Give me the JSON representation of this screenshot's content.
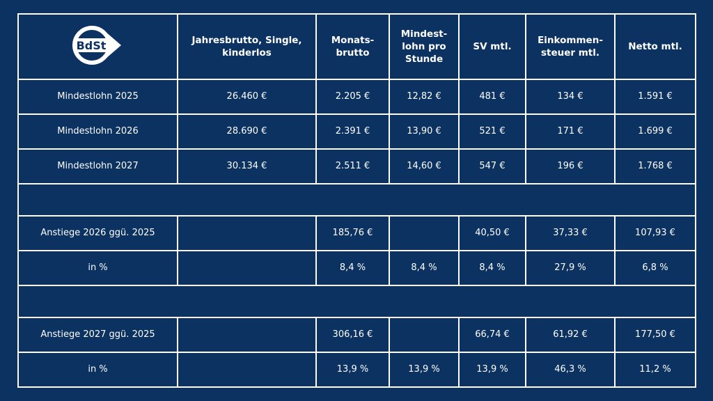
{
  "logo": {
    "text": "BdSt"
  },
  "header": {
    "col1": "Jahresbrutto, Single, kinderlos",
    "col2": "Monats-brutto",
    "col3": "Mindest-lohn pro Stunde",
    "col4": "SV mtl.",
    "col5": "Einkommen-steuer mtl.",
    "col6": "Netto mtl."
  },
  "rows": {
    "r2025": {
      "label": "Mindestlohn 2025",
      "jahres": "26.460 €",
      "monat": "2.205 €",
      "stunde": "12,82 €",
      "sv": "481 €",
      "est": "134 €",
      "netto": "1.591 €"
    },
    "r2026": {
      "label": "Mindestlohn 2026",
      "jahres": "28.690 €",
      "monat": "2.391 €",
      "stunde": "13,90 €",
      "sv": "521 €",
      "est": "171 €",
      "netto": "1.699 €"
    },
    "r2027": {
      "label": "Mindestlohn 2027",
      "jahres": "30.134 €",
      "monat": "2.511 €",
      "stunde": "14,60 €",
      "sv": "547 €",
      "est": "196 €",
      "netto": "1.768 €"
    },
    "inc2026": {
      "label": "Anstiege 2026 ggü. 2025",
      "jahres": "",
      "monat": "185,76 €",
      "stunde": "",
      "sv": "40,50 €",
      "est": "37,33 €",
      "netto": "107,93 €"
    },
    "pct2026": {
      "label": "in %",
      "jahres": "",
      "monat": "8,4 %",
      "stunde": "8,4 %",
      "sv": "8,4 %",
      "est": "27,9 %",
      "netto": "6,8 %"
    },
    "inc2027": {
      "label": "Anstiege 2027 ggü. 2025",
      "jahres": "",
      "monat": "306,16 €",
      "stunde": "",
      "sv": "66,74 €",
      "est": "61,92 €",
      "netto": "177,50 €"
    },
    "pct2027": {
      "label": "in %",
      "jahres": "",
      "monat": "13,9 %",
      "stunde": "13,9 %",
      "sv": "13,9 %",
      "est": "46,3 %",
      "netto": "11,2 %"
    }
  },
  "colors": {
    "background": "#0b3260",
    "text": "#ffffff",
    "grid": "#ffffff"
  }
}
